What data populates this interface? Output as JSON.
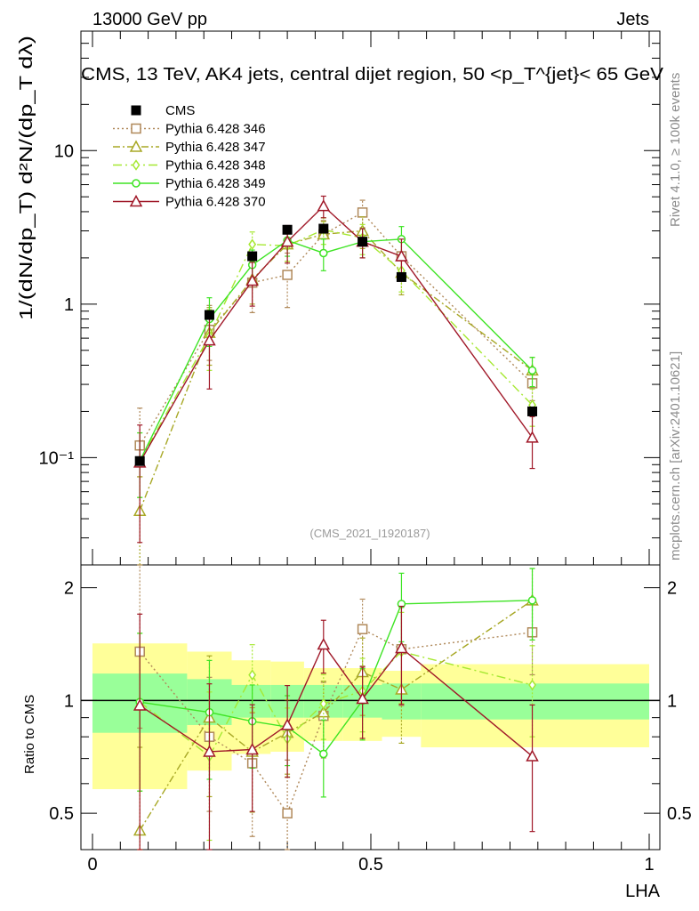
{
  "header": {
    "left": "13000 GeV pp",
    "right": "Jets"
  },
  "side": {
    "rivet": "Rivet 4.1.0, ≥ 100k events",
    "mcplots": "mcplots.cern.ch [arXiv:2401.10621]"
  },
  "watermark": "(CMS_2021_I1920187)",
  "chart_data": {
    "type": "scatter",
    "title": "CMS, 13 TeV, AK4 jets, central dijet region, 50 <p_T^{jet}< 65 GeV",
    "xlabel": "LHA",
    "ylabel": "1/(dN/dp_T) d²N/(dp_T dλ)",
    "ratio_ylabel": "Ratio to CMS",
    "xlim": [
      0,
      1
    ],
    "ylim": [
      0.02,
      60
    ],
    "ratio_ylim": [
      0.4,
      2.3
    ],
    "yscale": "log",
    "x_ticks": [
      "0",
      "0.5",
      "1"
    ],
    "y_ticks": [
      "10⁻¹",
      "1",
      "10"
    ],
    "ratio_ticks": [
      "0.5",
      "1",
      "2"
    ],
    "x": [
      0.085,
      0.21,
      0.287,
      0.35,
      0.415,
      0.485,
      0.555,
      0.79
    ],
    "bins": [
      [
        0.0,
        0.17
      ],
      [
        0.17,
        0.25
      ],
      [
        0.25,
        0.32
      ],
      [
        0.32,
        0.38
      ],
      [
        0.38,
        0.45
      ],
      [
        0.45,
        0.52
      ],
      [
        0.52,
        0.59
      ],
      [
        0.59,
        1.0
      ]
    ],
    "data": {
      "name": "CMS",
      "values": [
        0.095,
        0.85,
        2.05,
        3.05,
        3.1,
        2.55,
        1.5,
        0.2
      ],
      "band_inner": [
        0.18,
        0.14,
        0.1,
        0.1,
        0.1,
        0.1,
        0.11,
        0.11
      ],
      "band_outer": [
        0.42,
        0.35,
        0.28,
        0.27,
        0.22,
        0.22,
        0.2,
        0.25
      ]
    },
    "series": [
      {
        "name": "Pythia 6.428 346",
        "color": "#b0895a",
        "marker": "square",
        "dash": "2,3",
        "values": [
          0.12,
          0.68,
          1.38,
          1.55,
          2.85,
          3.95,
          2.05,
          0.305
        ],
        "ratio": [
          1.35,
          0.8,
          0.68,
          0.5,
          0.91,
          1.55,
          1.37,
          1.52
        ],
        "err_lo": [
          0.045,
          0.25,
          0.5,
          0.6,
          0.65,
          0.8,
          0.6,
          0.07
        ],
        "err_hi": [
          0.09,
          0.3,
          0.5,
          0.6,
          0.65,
          0.8,
          0.6,
          0.07
        ]
      },
      {
        "name": "Pythia 6.428 347",
        "color": "#a8a826",
        "marker": "triangle",
        "dash": "8,3,2,3",
        "values": [
          0.045,
          0.65,
          1.45,
          2.45,
          2.85,
          3.0,
          1.6,
          0.37
        ],
        "ratio": [
          0.45,
          0.9,
          0.73,
          0.82,
          0.93,
          1.19,
          1.07,
          1.85
        ],
        "err_lo": [
          0.025,
          0.25,
          0.45,
          0.55,
          0.6,
          0.7,
          0.45,
          0.08
        ],
        "err_hi": [
          0.03,
          0.3,
          0.45,
          0.55,
          0.6,
          0.7,
          0.45,
          0.08
        ]
      },
      {
        "name": "Pythia 6.428 348",
        "color": "#a6e832",
        "marker": "diamond",
        "dash": "10,4,2,4",
        "values": [
          0.095,
          0.62,
          2.45,
          2.4,
          3.05,
          2.7,
          1.65,
          0.22
        ],
        "ratio": [
          0.99,
          0.71,
          1.17,
          0.79,
          0.98,
          1.06,
          1.35,
          1.1
        ],
        "err_lo": [
          0.04,
          0.25,
          0.5,
          0.5,
          0.6,
          0.6,
          0.45,
          0.06
        ],
        "err_hi": [
          0.05,
          0.3,
          0.5,
          0.5,
          0.6,
          0.6,
          0.45,
          0.06
        ]
      },
      {
        "name": "Pythia 6.428 349",
        "color": "#3ee424",
        "marker": "circle",
        "dash": "",
        "values": [
          0.095,
          0.8,
          1.8,
          2.6,
          2.15,
          2.55,
          2.65,
          0.37
        ],
        "ratio": [
          0.99,
          0.93,
          0.88,
          0.85,
          0.72,
          1.0,
          1.81,
          1.85
        ],
        "err_lo": [
          0.04,
          0.27,
          0.45,
          0.55,
          0.5,
          0.55,
          0.55,
          0.08
        ],
        "err_hi": [
          0.05,
          0.3,
          0.45,
          0.55,
          0.5,
          0.55,
          0.55,
          0.08
        ]
      },
      {
        "name": "Pythia 6.428 370",
        "color": "#a01828",
        "marker": "triangle",
        "dash": "",
        "values": [
          0.093,
          0.58,
          1.42,
          2.55,
          4.35,
          2.55,
          2.05,
          0.135
        ],
        "ratio": [
          0.97,
          0.73,
          0.74,
          0.86,
          1.41,
          1.01,
          1.38,
          0.71
        ],
        "err_lo": [
          0.065,
          0.3,
          0.45,
          0.7,
          0.7,
          0.55,
          0.6,
          0.05
        ],
        "err_hi": [
          0.07,
          0.3,
          0.45,
          0.7,
          0.7,
          0.55,
          0.6,
          0.05
        ]
      }
    ]
  }
}
